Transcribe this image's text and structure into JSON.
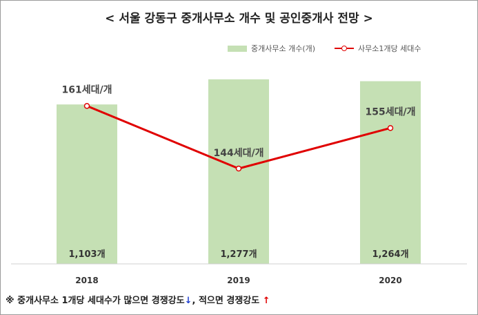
{
  "chart_data": {
    "type": "bar",
    "title": "< 서울 강동구 중개사무소 개수 및 공인중개사 전망 >",
    "categories": [
      "2018",
      "2019",
      "2020"
    ],
    "bar_series": {
      "name": "중개사무소 개수(개)",
      "values": [
        1103,
        1277,
        1264
      ],
      "labels": [
        "1,103개",
        "1,277개",
        "1,264개"
      ],
      "color": "#c5e0b4"
    },
    "line_series": {
      "name": "사무소1개당 세대수",
      "values": [
        161,
        144,
        155
      ],
      "labels": [
        "161세대/개",
        "144세대/개",
        "155세대/개"
      ],
      "color": "#e00000"
    },
    "legend_position": "top-right",
    "grid": false
  },
  "footnote": {
    "part1": "※ 중개사무소 1개당 세대수가 많으면 경쟁강도",
    "arrow1": "↓",
    "part2": ", 적으면 경쟁강도",
    "arrow2": "↑"
  }
}
